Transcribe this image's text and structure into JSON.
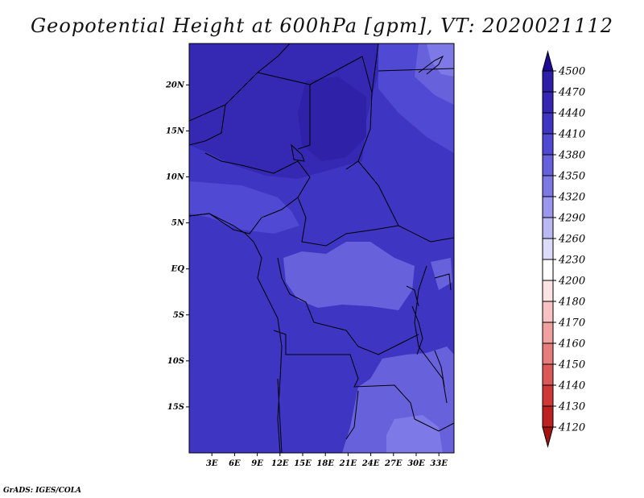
{
  "title": "Geopotential Height at 600hPa [gpm], VT: 2020021112",
  "credit": "GrADS: IGES/COLA",
  "map": {
    "lat_range": [
      -20,
      24.5
    ],
    "lon_range": [
      0,
      35
    ],
    "lat_ticks": [
      {
        "value": 20,
        "label": "20N"
      },
      {
        "value": 15,
        "label": "15N"
      },
      {
        "value": 10,
        "label": "10N"
      },
      {
        "value": 5,
        "label": "5N"
      },
      {
        "value": 0,
        "label": "EQ"
      },
      {
        "value": -5,
        "label": "5S"
      },
      {
        "value": -10,
        "label": "10S"
      },
      {
        "value": -15,
        "label": "15S"
      }
    ],
    "lon_ticks": [
      {
        "value": 3,
        "label": "3E"
      },
      {
        "value": 6,
        "label": "6E"
      },
      {
        "value": 9,
        "label": "9E"
      },
      {
        "value": 12,
        "label": "12E"
      },
      {
        "value": 15,
        "label": "15E"
      },
      {
        "value": 18,
        "label": "18E"
      },
      {
        "value": 21,
        "label": "21E"
      },
      {
        "value": 24,
        "label": "24E"
      },
      {
        "value": 27,
        "label": "27E"
      },
      {
        "value": 30,
        "label": "30E"
      },
      {
        "value": 33,
        "label": "33E"
      }
    ]
  },
  "colorbar": {
    "labels": [
      "4500",
      "4470",
      "4440",
      "4410",
      "4380",
      "4350",
      "4320",
      "4290",
      "4260",
      "4230",
      "4200",
      "4180",
      "4170",
      "4160",
      "4150",
      "4140",
      "4130",
      "4120"
    ],
    "colors": [
      "#1e0a96",
      "#2e1fa8",
      "#3526b4",
      "#3f35c4",
      "#4f49d4",
      "#6560dc",
      "#7d79e4",
      "#9a97ec",
      "#bbb9f3",
      "#dcdbfa",
      "#ffffff",
      "#fde4e4",
      "#f8c2c2",
      "#f0a0a0",
      "#e67c7c",
      "#dc5858",
      "#d03838",
      "#bd2121",
      "#a51212"
    ],
    "field_colors": {
      "dark": "#3529b3",
      "main": "#3e36c3",
      "mid": "#4f49d3",
      "light": "#6762dc",
      "lightest": "#7d79e6"
    }
  }
}
